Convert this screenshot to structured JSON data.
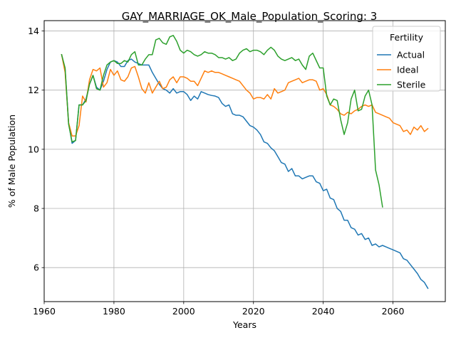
{
  "chart_data": {
    "type": "line",
    "title": "GAY_MARRIAGE_OK_Male_Population_Scoring: 3",
    "xlabel": "Years",
    "ylabel": "% of Male Population",
    "xlim": [
      1960,
      2075
    ],
    "ylim": [
      4.85,
      14.35
    ],
    "x_ticks": [
      1960,
      1980,
      2000,
      2020,
      2040,
      2060
    ],
    "y_ticks": [
      6,
      8,
      10,
      12,
      14
    ],
    "grid": true,
    "legend": {
      "title": "Fertility",
      "placement": "top-right"
    },
    "series": [
      {
        "name": "Actual",
        "color": "#1f77b4",
        "x": [
          1965,
          1966,
          1967,
          1968,
          1969,
          1970,
          1971,
          1972,
          1973,
          1974,
          1975,
          1976,
          1977,
          1978,
          1979,
          1980,
          1981,
          1982,
          1983,
          1984,
          1985,
          1986,
          1987,
          1988,
          1989,
          1990,
          1991,
          1992,
          1993,
          1994,
          1995,
          1996,
          1997,
          1998,
          1999,
          2000,
          2001,
          2002,
          2003,
          2004,
          2005,
          2006,
          2007,
          2008,
          2009,
          2010,
          2011,
          2012,
          2013,
          2014,
          2015,
          2016,
          2017,
          2018,
          2019,
          2020,
          2021,
          2022,
          2023,
          2024,
          2025,
          2026,
          2027,
          2028,
          2029,
          2030,
          2031,
          2032,
          2033,
          2034,
          2035,
          2036,
          2037,
          2038,
          2039,
          2040,
          2041,
          2042,
          2043,
          2044,
          2045,
          2046,
          2047,
          2048,
          2049,
          2050,
          2051,
          2052,
          2053,
          2054,
          2055,
          2056,
          2057,
          2058,
          2059,
          2060,
          2061,
          2062,
          2063,
          2064,
          2065,
          2066,
          2067,
          2068,
          2069,
          2070
        ],
        "values": [
          13.2,
          12.7,
          10.9,
          10.2,
          10.3,
          11.5,
          11.5,
          11.7,
          12.2,
          12.5,
          12.1,
          12.0,
          12.3,
          12.7,
          12.95,
          13.0,
          12.95,
          12.8,
          12.8,
          13.0,
          13.05,
          12.95,
          12.9,
          12.85,
          12.85,
          12.85,
          12.6,
          12.4,
          12.2,
          12.05,
          12.0,
          11.9,
          12.05,
          11.9,
          11.95,
          11.95,
          11.85,
          11.65,
          11.8,
          11.7,
          11.95,
          11.9,
          11.85,
          11.82,
          11.8,
          11.75,
          11.55,
          11.45,
          11.5,
          11.2,
          11.15,
          11.15,
          11.1,
          10.95,
          10.8,
          10.75,
          10.65,
          10.5,
          10.25,
          10.2,
          10.05,
          9.95,
          9.75,
          9.55,
          9.5,
          9.25,
          9.35,
          9.1,
          9.1,
          9.0,
          9.05,
          9.1,
          9.1,
          8.9,
          8.85,
          8.6,
          8.65,
          8.35,
          8.3,
          8.0,
          7.9,
          7.6,
          7.6,
          7.35,
          7.3,
          7.1,
          7.15,
          6.95,
          7.0,
          6.75,
          6.8,
          6.7,
          6.75,
          6.7,
          6.65,
          6.6,
          6.55,
          6.5,
          6.3,
          6.25,
          6.1,
          5.95,
          5.8,
          5.6,
          5.5,
          5.3
        ]
      },
      {
        "name": "Ideal",
        "color": "#ff7f0e",
        "x": [
          1965,
          1966,
          1967,
          1968,
          1969,
          1970,
          1971,
          1972,
          1973,
          1974,
          1975,
          1976,
          1977,
          1978,
          1979,
          1980,
          1981,
          1982,
          1983,
          1984,
          1985,
          1986,
          1987,
          1988,
          1989,
          1990,
          1991,
          1992,
          1993,
          1994,
          1995,
          1996,
          1997,
          1998,
          1999,
          2000,
          2001,
          2002,
          2003,
          2004,
          2005,
          2006,
          2007,
          2008,
          2009,
          2010,
          2011,
          2012,
          2013,
          2014,
          2015,
          2016,
          2017,
          2018,
          2019,
          2020,
          2021,
          2022,
          2023,
          2024,
          2025,
          2026,
          2027,
          2028,
          2029,
          2030,
          2031,
          2032,
          2033,
          2034,
          2035,
          2036,
          2037,
          2038,
          2039,
          2040,
          2041,
          2042,
          2043,
          2044,
          2045,
          2046,
          2047,
          2048,
          2049,
          2050,
          2051,
          2052,
          2053,
          2054,
          2055,
          2056,
          2057,
          2058,
          2059,
          2060,
          2061,
          2062,
          2063,
          2064,
          2065,
          2066,
          2067,
          2068,
          2069,
          2070
        ],
        "values": [
          13.2,
          12.6,
          10.9,
          10.45,
          10.45,
          10.8,
          11.8,
          11.6,
          12.35,
          12.7,
          12.65,
          12.75,
          12.1,
          12.25,
          12.7,
          12.5,
          12.65,
          12.35,
          12.3,
          12.45,
          12.75,
          12.8,
          12.45,
          12.05,
          11.9,
          12.25,
          11.9,
          12.1,
          12.3,
          12.05,
          12.1,
          12.35,
          12.45,
          12.25,
          12.45,
          12.45,
          12.4,
          12.3,
          12.3,
          12.15,
          12.4,
          12.65,
          12.6,
          12.65,
          12.6,
          12.6,
          12.55,
          12.5,
          12.45,
          12.4,
          12.35,
          12.3,
          12.15,
          12.0,
          11.9,
          11.7,
          11.75,
          11.75,
          11.7,
          11.85,
          11.7,
          12.05,
          11.9,
          11.95,
          12.0,
          12.25,
          12.3,
          12.35,
          12.4,
          12.25,
          12.3,
          12.35,
          12.35,
          12.3,
          12.0,
          12.05,
          11.85,
          11.5,
          11.45,
          11.35,
          11.2,
          11.15,
          11.25,
          11.2,
          11.3,
          11.35,
          11.45,
          11.5,
          11.45,
          11.5,
          11.25,
          11.2,
          11.15,
          11.1,
          11.05,
          10.9,
          10.85,
          10.8,
          10.6,
          10.65,
          10.5,
          10.75,
          10.65,
          10.8,
          10.6,
          10.7
        ]
      },
      {
        "name": "Sterile",
        "color": "#2ca02c",
        "x": [
          1965,
          1966,
          1967,
          1968,
          1969,
          1970,
          1971,
          1972,
          1973,
          1974,
          1975,
          1976,
          1977,
          1978,
          1979,
          1980,
          1981,
          1982,
          1983,
          1984,
          1985,
          1986,
          1987,
          1988,
          1989,
          1990,
          1991,
          1992,
          1993,
          1994,
          1995,
          1996,
          1997,
          1998,
          1999,
          2000,
          2001,
          2002,
          2003,
          2004,
          2005,
          2006,
          2007,
          2008,
          2009,
          2010,
          2011,
          2012,
          2013,
          2014,
          2015,
          2016,
          2017,
          2018,
          2019,
          2020,
          2021,
          2022,
          2023,
          2024,
          2025,
          2026,
          2027,
          2028,
          2029,
          2030,
          2031,
          2032,
          2033,
          2034,
          2035,
          2036,
          2037,
          2038,
          2039,
          2040,
          2041,
          2042,
          2043,
          2044,
          2045,
          2046,
          2047,
          2048,
          2049,
          2050,
          2051,
          2052,
          2053,
          2054,
          2055,
          2056,
          2057
        ],
        "values": [
          13.2,
          12.75,
          10.85,
          10.25,
          10.3,
          11.5,
          11.5,
          11.65,
          12.2,
          12.5,
          12.05,
          12.0,
          12.5,
          12.85,
          12.95,
          13.0,
          12.9,
          12.9,
          13.0,
          12.95,
          13.2,
          13.3,
          12.85,
          12.85,
          13.05,
          13.2,
          13.2,
          13.7,
          13.75,
          13.6,
          13.55,
          13.8,
          13.85,
          13.65,
          13.35,
          13.25,
          13.35,
          13.3,
          13.2,
          13.15,
          13.2,
          13.3,
          13.25,
          13.25,
          13.2,
          13.1,
          13.1,
          13.05,
          13.1,
          13.0,
          13.05,
          13.25,
          13.35,
          13.4,
          13.3,
          13.35,
          13.35,
          13.3,
          13.2,
          13.35,
          13.45,
          13.35,
          13.15,
          13.05,
          13.0,
          13.05,
          13.1,
          13.0,
          13.05,
          12.85,
          12.7,
          13.15,
          13.25,
          13.0,
          12.75,
          12.75,
          11.8,
          11.5,
          11.7,
          11.65,
          11.0,
          10.5,
          10.9,
          11.7,
          12.0,
          11.3,
          11.35,
          11.8,
          12.0,
          11.5,
          9.3,
          8.8,
          8.05
        ]
      }
    ]
  }
}
